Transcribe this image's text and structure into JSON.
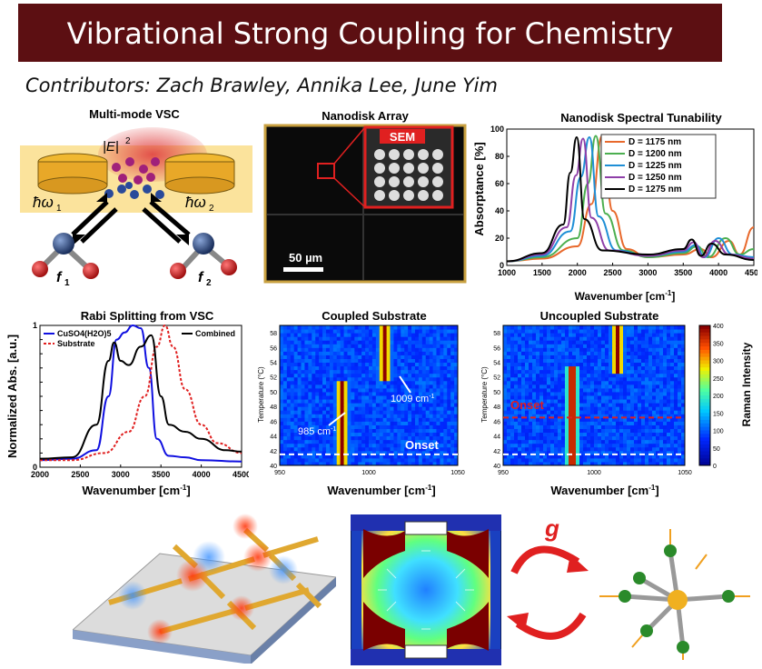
{
  "header": {
    "title": "Vibrational Strong Coupling for Chemistry"
  },
  "contributors": "Contributors: Zach Brawley, Annika Lee, June Yim",
  "panels": {
    "multimode": {
      "title": "Multi-mode VSC",
      "e_label": "|E|",
      "e_sup": "2",
      "hw1": "ħω",
      "hw1_sub": "1",
      "hw2": "ħω",
      "hw2_sub": "2",
      "f1": "f",
      "f1_sub": "1",
      "f2": "f",
      "f2_sub": "2"
    },
    "nanodisk": {
      "title": "Nanodisk Array",
      "sem": "SEM",
      "scale": "50 µm"
    },
    "rabi": {
      "title": "Rabi Splitting from VSC"
    },
    "coupled": {
      "title": "Coupled Substrate",
      "peak1": "985 cm",
      "peak1_sup": "-1",
      "peak2": "1009 cm",
      "peak2_sup": "-1",
      "onset": "Onset",
      "ylabel": "Temperature (°C)",
      "xlabel": "Wavenumber [cm",
      "xlabel_sup": "-1",
      "xlabel_end": "]"
    },
    "uncoupled": {
      "title": "Uncoupled Substrate",
      "onset": "Onset",
      "ylabel": "Temperature (°C)",
      "xlabel": "Wavenumber [cm",
      "xlabel_sup": "-1",
      "xlabel_end": "]",
      "cbar_label": "Raman Intensity",
      "cbar_ticks": [
        "400",
        "350",
        "300",
        "250",
        "200",
        "150",
        "100",
        "50",
        "0"
      ]
    },
    "coupling": {
      "g_label": "g"
    }
  },
  "chart_data": [
    {
      "type": "line",
      "title": "Nanodisk Spectral Tunability",
      "xlabel": "Wavenumber [cm-1]",
      "ylabel": "Absorptance [%]",
      "xlim": [
        1000,
        4500
      ],
      "ylim": [
        0,
        100
      ],
      "xticks": [
        1000,
        1500,
        2000,
        2500,
        3000,
        3500,
        4000,
        4500
      ],
      "yticks": [
        0,
        20,
        40,
        60,
        80,
        100
      ],
      "legend": "top-right",
      "series": [
        {
          "name": "D = 1175 nm",
          "color": "#e8692c",
          "peak": 2350,
          "width": 130,
          "values": [
            [
              1000,
              3
            ],
            [
              1500,
              5
            ],
            [
              2000,
              14
            ],
            [
              2200,
              45
            ],
            [
              2350,
              95
            ],
            [
              2500,
              40
            ],
            [
              2700,
              12
            ],
            [
              3000,
              6
            ],
            [
              3500,
              8
            ],
            [
              3750,
              12
            ],
            [
              3900,
              6
            ],
            [
              4150,
              18
            ],
            [
              4300,
              8
            ],
            [
              4500,
              28
            ]
          ]
        },
        {
          "name": "D = 1200 nm",
          "color": "#4caf50",
          "peak": 2260,
          "width": 130,
          "values": [
            [
              1000,
              3
            ],
            [
              1500,
              6
            ],
            [
              2000,
              20
            ],
            [
              2150,
              60
            ],
            [
              2260,
              95
            ],
            [
              2400,
              38
            ],
            [
              2650,
              11
            ],
            [
              3000,
              6
            ],
            [
              3500,
              9
            ],
            [
              3700,
              14
            ],
            [
              3850,
              6
            ],
            [
              4100,
              20
            ],
            [
              4300,
              8
            ],
            [
              4500,
              12
            ]
          ]
        },
        {
          "name": "D = 1225 nm",
          "color": "#1f8fd6",
          "peak": 2170,
          "width": 130,
          "values": [
            [
              1000,
              3
            ],
            [
              1500,
              7
            ],
            [
              1900,
              25
            ],
            [
              2050,
              65
            ],
            [
              2170,
              94
            ],
            [
              2300,
              36
            ],
            [
              2550,
              11
            ],
            [
              3000,
              7
            ],
            [
              3500,
              10
            ],
            [
              3680,
              15
            ],
            [
              3800,
              6
            ],
            [
              4000,
              20
            ],
            [
              4200,
              8
            ],
            [
              4500,
              6
            ]
          ]
        },
        {
          "name": "D = 1250 nm",
          "color": "#8e3fa8",
          "peak": 2080,
          "width": 130,
          "values": [
            [
              1000,
              3
            ],
            [
              1500,
              8
            ],
            [
              1850,
              28
            ],
            [
              1980,
              66
            ],
            [
              2080,
              93
            ],
            [
              2200,
              35
            ],
            [
              2450,
              11
            ],
            [
              3000,
              7
            ],
            [
              3500,
              11
            ],
            [
              3650,
              17
            ],
            [
              3780,
              6
            ],
            [
              3950,
              18
            ],
            [
              4150,
              8
            ],
            [
              4500,
              5
            ]
          ]
        },
        {
          "name": "D = 1275 nm",
          "color": "#000000",
          "peak": 1990,
          "width": 130,
          "values": [
            [
              1000,
              3
            ],
            [
              1500,
              9
            ],
            [
              1800,
              30
            ],
            [
              1900,
              68
            ],
            [
              1990,
              94
            ],
            [
              2100,
              34
            ],
            [
              2350,
              11
            ],
            [
              3000,
              8
            ],
            [
              3500,
              12
            ],
            [
              3620,
              19
            ],
            [
              3750,
              7
            ],
            [
              3900,
              16
            ],
            [
              4100,
              8
            ],
            [
              4500,
              4
            ]
          ]
        }
      ]
    },
    {
      "type": "line",
      "title": "Rabi Splitting from VSC",
      "xlabel": "Wavenumber [cm-1]",
      "ylabel": "Normalized Abs. [a.u.]",
      "xlim": [
        2000,
        4500
      ],
      "ylim": [
        0,
        1
      ],
      "xticks": [
        2000,
        2500,
        3000,
        3500,
        4000,
        4500
      ],
      "yticks": [
        0,
        0.1,
        0.2,
        0.3,
        0.4,
        0.5,
        0.6,
        0.7,
        0.8,
        0.9,
        1
      ],
      "legend": "top-left and top-right",
      "series": [
        {
          "name": "CuSO4(H2O)5",
          "color": "#1010e0",
          "dash": false,
          "values": [
            [
              2000,
              0.05
            ],
            [
              2400,
              0.06
            ],
            [
              2700,
              0.12
            ],
            [
              2850,
              0.5
            ],
            [
              2950,
              0.9
            ],
            [
              3050,
              0.95
            ],
            [
              3150,
              1.0
            ],
            [
              3250,
              0.98
            ],
            [
              3350,
              0.7
            ],
            [
              3450,
              0.2
            ],
            [
              3600,
              0.08
            ],
            [
              3800,
              0.07
            ],
            [
              4000,
              0.05
            ],
            [
              4500,
              0.04
            ]
          ]
        },
        {
          "name": "Substrate",
          "color": "#e02020",
          "dash": true,
          "values": [
            [
              2000,
              0.05
            ],
            [
              2400,
              0.05
            ],
            [
              2800,
              0.1
            ],
            [
              3100,
              0.25
            ],
            [
              3300,
              0.5
            ],
            [
              3450,
              0.85
            ],
            [
              3550,
              1.0
            ],
            [
              3650,
              0.85
            ],
            [
              3800,
              0.55
            ],
            [
              4000,
              0.3
            ],
            [
              4200,
              0.17
            ],
            [
              4500,
              0.1
            ]
          ]
        },
        {
          "name": "Combined",
          "color": "#000000",
          "dash": false,
          "values": [
            [
              2000,
              0.06
            ],
            [
              2400,
              0.07
            ],
            [
              2700,
              0.3
            ],
            [
              2850,
              0.75
            ],
            [
              2920,
              0.88
            ],
            [
              3000,
              0.75
            ],
            [
              3100,
              0.72
            ],
            [
              3250,
              0.85
            ],
            [
              3380,
              0.93
            ],
            [
              3500,
              0.5
            ],
            [
              3600,
              0.3
            ],
            [
              3800,
              0.25
            ],
            [
              4000,
              0.2
            ],
            [
              4300,
              0.12
            ],
            [
              4500,
              0.11
            ]
          ]
        }
      ]
    },
    {
      "type": "heatmap",
      "title": "Coupled Substrate",
      "xlabel": "Wavenumber [cm-1]",
      "ylabel": "Temperature (°C)",
      "xlim": [
        950,
        1050
      ],
      "ylim": [
        40,
        59
      ],
      "xticks": [
        950,
        1000,
        1050
      ],
      "yticks": [
        40,
        42,
        44,
        46,
        48,
        50,
        52,
        54,
        56,
        58
      ],
      "bands": [
        {
          "center": 985,
          "from": 40,
          "to": 51
        },
        {
          "center": 1009,
          "from": 52,
          "to": 59
        }
      ],
      "onset_temp": 41.5
    },
    {
      "type": "heatmap",
      "title": "Uncoupled Substrate",
      "xlabel": "Wavenumber [cm-1]",
      "ylabel": "Temperature (°C)",
      "xlim": [
        950,
        1050
      ],
      "ylim": [
        40,
        59
      ],
      "xticks": [
        950,
        1000,
        1050
      ],
      "yticks": [
        40,
        42,
        44,
        46,
        48,
        50,
        52,
        54,
        56,
        58
      ],
      "bands": [
        {
          "center": 988,
          "from": 40,
          "to": 53
        },
        {
          "center": 1013,
          "from": 53,
          "to": 59
        }
      ],
      "onset_temps": [
        46.5,
        41.5
      ],
      "colorbar": {
        "label": "Raman Intensity",
        "min": 0,
        "max": 400
      }
    }
  ],
  "colors": {
    "title_bg": "#5c0f12",
    "gold": "#e8b43a",
    "red": "#e02020"
  }
}
